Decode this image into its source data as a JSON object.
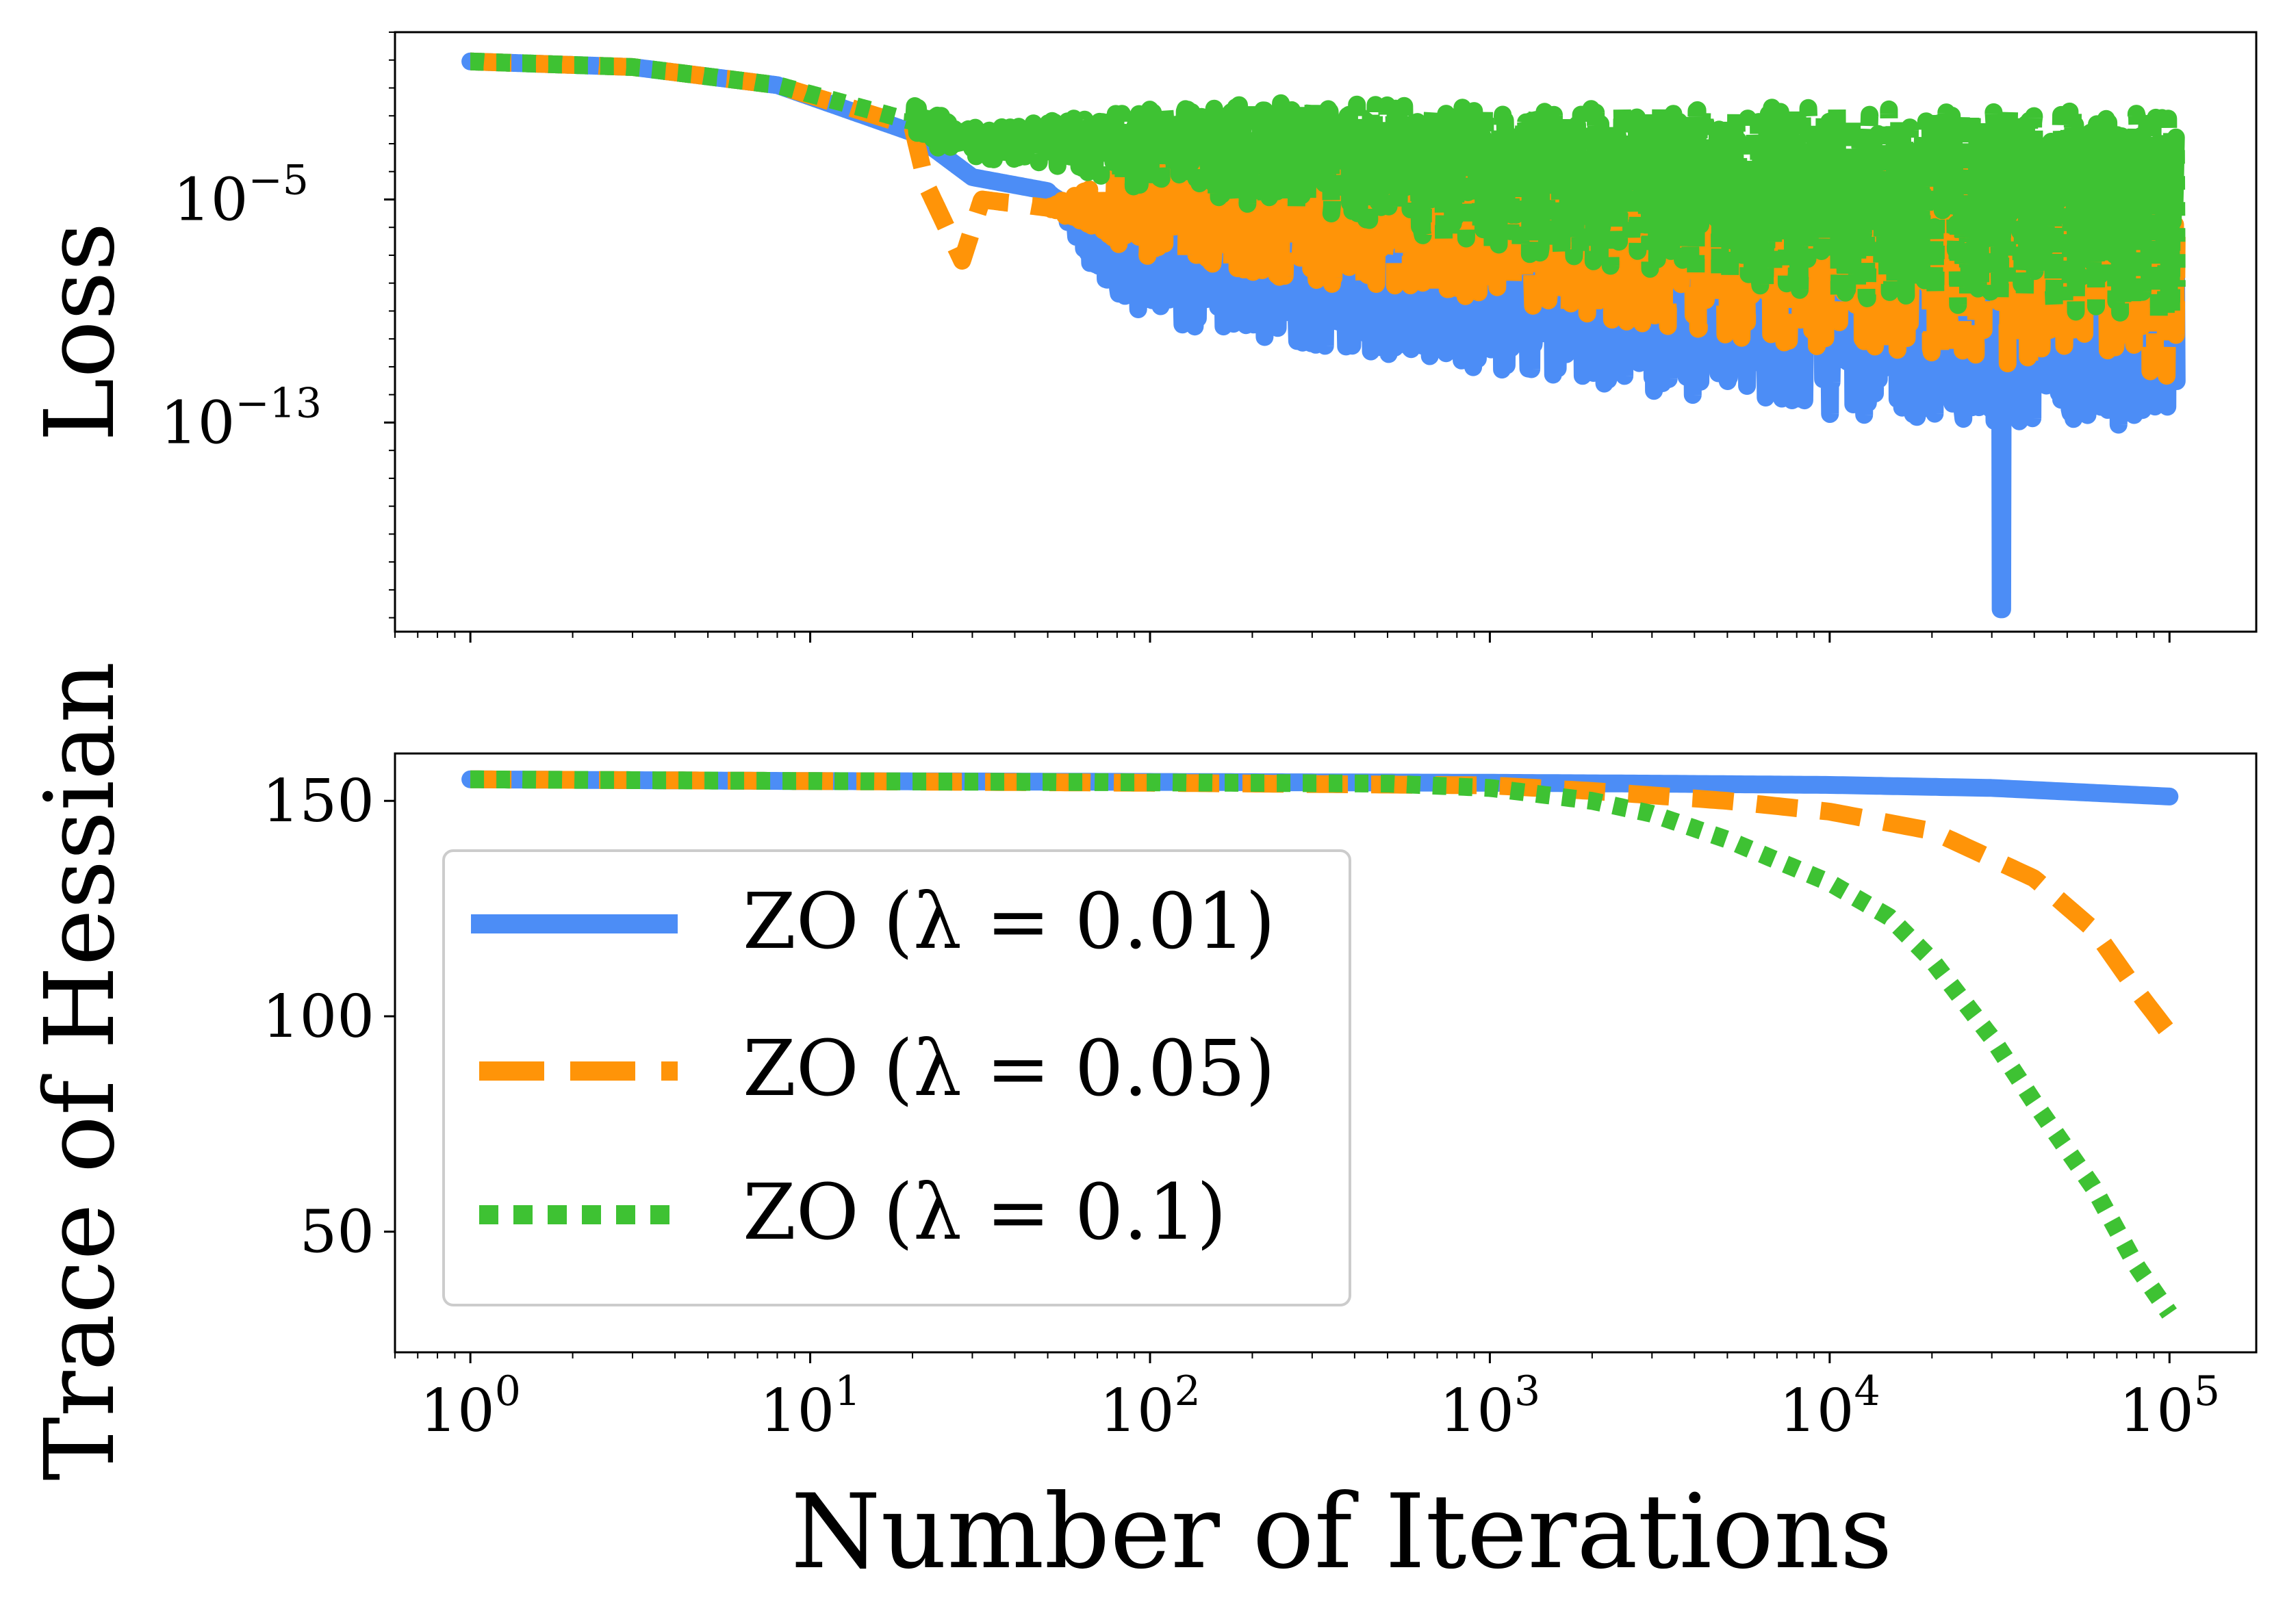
{
  "figure": {
    "ylabel_top": "Loss",
    "ylabel_bottom": "Trace of Hessian",
    "xlabel": "Number of Iterations"
  },
  "legend": {
    "entries": [
      {
        "label": "ZO (λ = 0.01)",
        "color": "#4C8DF6",
        "style": "solid"
      },
      {
        "label": "ZO (λ = 0.05)",
        "color": "#FF9408",
        "style": "dashed"
      },
      {
        "label": "ZO (λ = 0.1)",
        "color": "#3EC233",
        "style": "dotted"
      }
    ],
    "placement": "lower-left of bottom panel"
  },
  "chart_data": [
    {
      "type": "line",
      "panel": "top",
      "ylabel": "Loss",
      "xscale": "log",
      "yscale": "log",
      "xlim": [
        0.6,
        180000
      ],
      "ylim_exponent": [
        -20.5,
        1
      ],
      "yticks": [
        {
          "exponent": -5,
          "base": "10",
          "sup": "−5"
        },
        {
          "exponent": -13,
          "base": "10",
          "sup": "−13"
        }
      ],
      "series": [
        {
          "name": "ZO (λ = 0.01)",
          "color": "#4C8DF6",
          "center_log10": [
            [
              1,
              -0.05
            ],
            [
              3,
              -0.25
            ],
            [
              8,
              -0.9
            ],
            [
              20,
              -2.6
            ],
            [
              30,
              -4.2
            ],
            [
              50,
              -4.7
            ],
            [
              70,
              -6.7
            ],
            [
              120,
              -7.3
            ],
            [
              300,
              -7.6
            ],
            [
              1000,
              -7.9
            ],
            [
              3000,
              -8.3
            ],
            [
              10000,
              -8.5
            ],
            [
              30000,
              -8.6
            ],
            [
              100000,
              -8.7
            ]
          ],
          "noise_low": [
            [
              50,
              0
            ],
            [
              100,
              -2.2
            ],
            [
              1000,
              -3.2
            ],
            [
              5000,
              -3.8
            ],
            [
              10000,
              -4.2
            ],
            [
              100000,
              -4.5
            ]
          ],
          "noise_high": [
            [
              50,
              0
            ],
            [
              100,
              1.2
            ],
            [
              1000,
              1.6
            ],
            [
              10000,
              2.2
            ],
            [
              100000,
              2.5
            ]
          ],
          "deep_spike": {
            "x": 32000,
            "log10": -19.7
          }
        },
        {
          "name": "ZO (λ = 0.05)",
          "color": "#FF9408",
          "center_log10": [
            [
              1,
              -0.05
            ],
            [
              3,
              -0.25
            ],
            [
              8,
              -0.9
            ],
            [
              20,
              -2.4
            ],
            [
              22,
              -4.5
            ],
            [
              28,
              -7.2
            ],
            [
              32,
              -5.0
            ],
            [
              50,
              -5.3
            ],
            [
              100,
              -5.2
            ],
            [
              300,
              -5.6
            ],
            [
              1000,
              -5.9
            ],
            [
              3000,
              -6.4
            ],
            [
              10000,
              -6.8
            ],
            [
              100000,
              -7.2
            ]
          ],
          "noise_low": [
            [
              50,
              0
            ],
            [
              100,
              -2.0
            ],
            [
              1000,
              -2.8
            ],
            [
              10000,
              -3.6
            ],
            [
              100000,
              -4.2
            ]
          ],
          "noise_high": [
            [
              50,
              0
            ],
            [
              100,
              1.8
            ],
            [
              1000,
              2.4
            ],
            [
              10000,
              3.0
            ],
            [
              100000,
              3.4
            ]
          ]
        },
        {
          "name": "ZO (λ = 0.1)",
          "color": "#3EC233",
          "center_log10": [
            [
              1,
              -0.05
            ],
            [
              3,
              -0.25
            ],
            [
              8,
              -0.9
            ],
            [
              20,
              -2.2
            ],
            [
              30,
              -3.0
            ],
            [
              100,
              -2.9
            ],
            [
              300,
              -3.0
            ],
            [
              1000,
              -3.6
            ],
            [
              10000,
              -4.3
            ],
            [
              100000,
              -4.7
            ]
          ],
          "noise_low": [
            [
              50,
              -0.8
            ],
            [
              100,
              -1.8
            ],
            [
              1000,
              -3.2
            ],
            [
              10000,
              -4.2
            ],
            [
              100000,
              -4.6
            ]
          ],
          "noise_high": [
            [
              50,
              0.8
            ],
            [
              100,
              1.2
            ],
            [
              1000,
              1.9
            ],
            [
              10000,
              2.6
            ],
            [
              100000,
              2.8
            ]
          ]
        }
      ]
    },
    {
      "type": "line",
      "panel": "bottom",
      "ylabel": "Trace of Hessian",
      "xlabel": "Number of Iterations",
      "xscale": "log",
      "xlim": [
        0.6,
        180000
      ],
      "ylim": [
        22,
        161
      ],
      "yticks": [
        50,
        100,
        150
      ],
      "xticks": [
        {
          "value": 1,
          "base": "10",
          "sup": "0"
        },
        {
          "value": 10,
          "base": "10",
          "sup": "1"
        },
        {
          "value": 100,
          "base": "10",
          "sup": "2"
        },
        {
          "value": 1000,
          "base": "10",
          "sup": "3"
        },
        {
          "value": 10000,
          "base": "10",
          "sup": "4"
        },
        {
          "value": 100000,
          "base": "10",
          "sup": "5"
        }
      ],
      "series": [
        {
          "name": "ZO (λ = 0.01)",
          "color": "#4C8DF6",
          "points": [
            [
              1,
              155
            ],
            [
              10,
              154.6
            ],
            [
              100,
              154.4
            ],
            [
              1000,
              154.2
            ],
            [
              3000,
              154
            ],
            [
              10000,
              153.7
            ],
            [
              30000,
              153
            ],
            [
              100000,
              151
            ]
          ]
        },
        {
          "name": "ZO (λ = 0.05)",
          "color": "#FF9408",
          "points": [
            [
              1,
              155
            ],
            [
              10,
              154.6
            ],
            [
              100,
              154.2
            ],
            [
              1000,
              153.6
            ],
            [
              2000,
              152.3
            ],
            [
              5000,
              150
            ],
            [
              10000,
              147.5
            ],
            [
              20000,
              143
            ],
            [
              40000,
              132
            ],
            [
              60000,
              120
            ],
            [
              80000,
              106
            ],
            [
              100000,
              96
            ]
          ]
        },
        {
          "name": "ZO (λ = 0.1)",
          "color": "#3EC233",
          "points": [
            [
              1,
              155
            ],
            [
              10,
              154.6
            ],
            [
              100,
              154.3
            ],
            [
              500,
              154
            ],
            [
              1000,
              153
            ],
            [
              2000,
              150
            ],
            [
              3000,
              147
            ],
            [
              5000,
              141
            ],
            [
              10000,
              131
            ],
            [
              15000,
              123
            ],
            [
              20000,
              113
            ],
            [
              30000,
              95
            ],
            [
              40000,
              80
            ],
            [
              60000,
              60
            ],
            [
              80000,
              42
            ],
            [
              100000,
              31
            ]
          ]
        }
      ]
    }
  ]
}
